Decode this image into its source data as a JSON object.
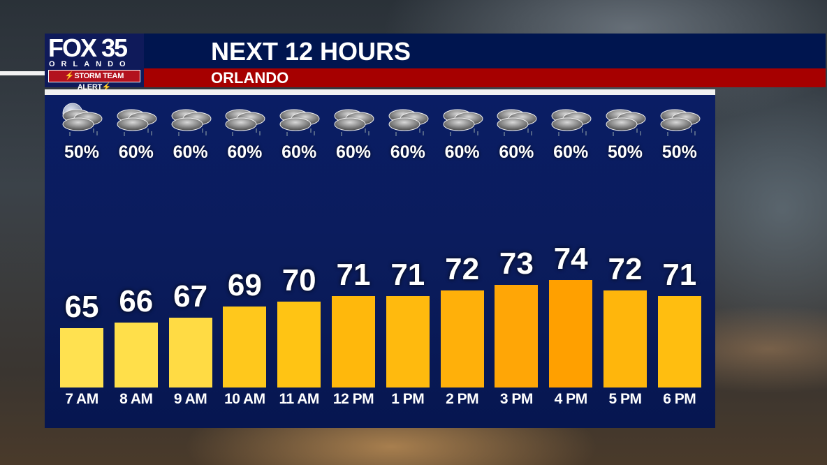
{
  "header": {
    "logo": {
      "brand": "FOX 35",
      "city": "ORLANDO",
      "alert": "⚡STORM TEAM ALERT⚡"
    },
    "title": "NEXT 12 HOURS",
    "subtitle": "ORLANDO"
  },
  "colors": {
    "navy": "#00154f",
    "red": "#a60000",
    "panel": "#0a1d64"
  },
  "chart_data": {
    "type": "bar",
    "title": "NEXT 12 HOURS",
    "subtitle": "ORLANDO",
    "categories": [
      "7 AM",
      "8 AM",
      "9 AM",
      "10 AM",
      "11 AM",
      "12 PM",
      "1 PM",
      "2 PM",
      "3 PM",
      "4 PM",
      "5 PM",
      "6 PM"
    ],
    "series": [
      {
        "name": "Temperature (°F)",
        "values": [
          65,
          66,
          67,
          69,
          70,
          71,
          71,
          72,
          73,
          74,
          72,
          71
        ]
      },
      {
        "name": "Precipitation chance (%)",
        "values": [
          50,
          60,
          60,
          60,
          60,
          60,
          60,
          60,
          60,
          60,
          50,
          50
        ]
      }
    ],
    "conditions": [
      "partly-cloudy-night-rain",
      "cloudy-rain",
      "cloudy-rain",
      "cloudy-rain",
      "cloudy-rain",
      "cloudy-rain",
      "cloudy-rain",
      "cloudy-rain",
      "cloudy-rain",
      "cloudy-rain",
      "cloudy-rain",
      "cloudy-rain"
    ],
    "bar_colors": [
      "#ffe150",
      "#ffdf4a",
      "#ffdb44",
      "#ffc81c",
      "#ffc414",
      "#ffb80c",
      "#ffba0e",
      "#ffb00a",
      "#ffa606",
      "#ffa000",
      "#ffb60c",
      "#ffbe10"
    ],
    "xlabel": "",
    "ylabel": "",
    "grid": false,
    "legend": "none"
  },
  "hours": [
    {
      "label": "7 AM",
      "temp": "65",
      "pop": "50%",
      "icon": "moon-cloud-rain-icon"
    },
    {
      "label": "8 AM",
      "temp": "66",
      "pop": "60%",
      "icon": "cloud-rain-icon"
    },
    {
      "label": "9 AM",
      "temp": "67",
      "pop": "60%",
      "icon": "cloud-rain-icon"
    },
    {
      "label": "10 AM",
      "temp": "69",
      "pop": "60%",
      "icon": "cloud-rain-icon"
    },
    {
      "label": "11 AM",
      "temp": "70",
      "pop": "60%",
      "icon": "cloud-rain-icon"
    },
    {
      "label": "12 PM",
      "temp": "71",
      "pop": "60%",
      "icon": "cloud-rain-icon"
    },
    {
      "label": "1 PM",
      "temp": "71",
      "pop": "60%",
      "icon": "cloud-rain-icon"
    },
    {
      "label": "2 PM",
      "temp": "72",
      "pop": "60%",
      "icon": "cloud-rain-icon"
    },
    {
      "label": "3 PM",
      "temp": "73",
      "pop": "60%",
      "icon": "cloud-rain-icon"
    },
    {
      "label": "4 PM",
      "temp": "74",
      "pop": "60%",
      "icon": "cloud-rain-icon"
    },
    {
      "label": "5 PM",
      "temp": "72",
      "pop": "50%",
      "icon": "cloud-rain-icon"
    },
    {
      "label": "6 PM",
      "temp": "71",
      "pop": "50%",
      "icon": "cloud-rain-icon"
    }
  ]
}
